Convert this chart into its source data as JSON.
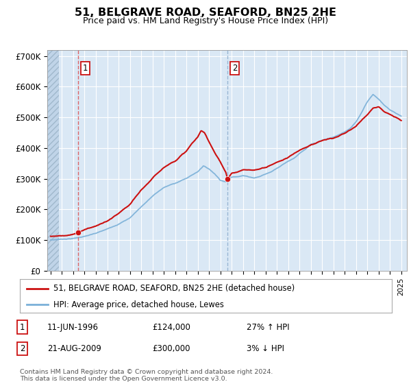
{
  "title": "51, BELGRAVE ROAD, SEAFORD, BN25 2HE",
  "subtitle": "Price paid vs. HM Land Registry's House Price Index (HPI)",
  "legend_line1": "51, BELGRAVE ROAD, SEAFORD, BN25 2HE (detached house)",
  "legend_line2": "HPI: Average price, detached house, Lewes",
  "transaction1_date": "11-JUN-1996",
  "transaction1_price": 124000,
  "transaction1_hpi": "27% ↑ HPI",
  "transaction2_date": "21-AUG-2009",
  "transaction2_price": 300000,
  "transaction2_hpi": "3% ↓ HPI",
  "footer": "Contains HM Land Registry data © Crown copyright and database right 2024.\nThis data is licensed under the Open Government Licence v3.0.",
  "ylim": [
    0,
    720000
  ],
  "xlim_start": 1993.7,
  "xlim_end": 2025.5,
  "background_color": "#dae8f5",
  "hatch_color": "#c0d4e8",
  "grid_color": "#ffffff",
  "red_line_color": "#cc1111",
  "blue_line_color": "#7ab0d8",
  "dashed1_color": "#dd4444",
  "dashed2_color": "#88aacc",
  "transaction1_x": 1996.44,
  "transaction2_x": 2009.64,
  "transaction1_y": 124000,
  "transaction2_y": 300000,
  "hatch_end_x": 1994.75
}
